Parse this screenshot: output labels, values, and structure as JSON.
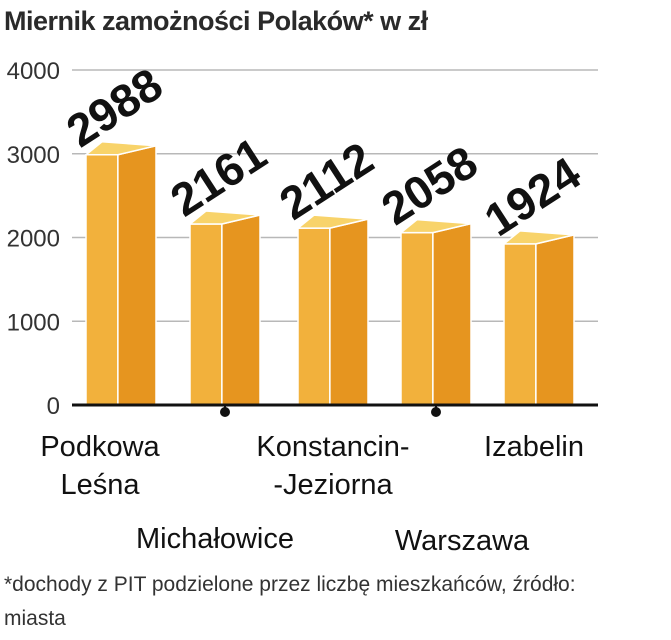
{
  "title": "Miernik zamożności Polaków* w zł",
  "footnote": "*dochody z PIT podzielone przez liczbę mieszkańców, źródło: miasta",
  "colors": {
    "bar_face": "#f2b13c",
    "bar_side": "#e6951f",
    "bar_top": "#f8d36a",
    "grid": "#b8b8b8",
    "axis": "#111111"
  },
  "chart_data": {
    "type": "bar",
    "title": "Miernik zamożności Polaków* w zł",
    "categories": [
      "Podkowa Leśna",
      "Michałowice",
      "Konstancin-Jeziorna",
      "Warszawa",
      "Izabelin"
    ],
    "category_label_lines": [
      [
        "Podkowa",
        "Leśna"
      ],
      [
        "Michałowice"
      ],
      [
        "Konstancin-",
        "-Jeziorna"
      ],
      [
        "Warszawa"
      ],
      [
        "Izabelin"
      ]
    ],
    "values": [
      2988,
      2161,
      2112,
      2058,
      1924
    ],
    "value_labels": [
      "2988",
      "2161",
      "2112",
      "2058",
      "1924"
    ],
    "yticks": [
      0,
      1000,
      2000,
      3000,
      4000
    ],
    "ytick_labels": [
      "0",
      "1000",
      "2000",
      "3000",
      "4000"
    ],
    "ylim": [
      0,
      4000
    ],
    "grid": true,
    "legend": "none"
  }
}
